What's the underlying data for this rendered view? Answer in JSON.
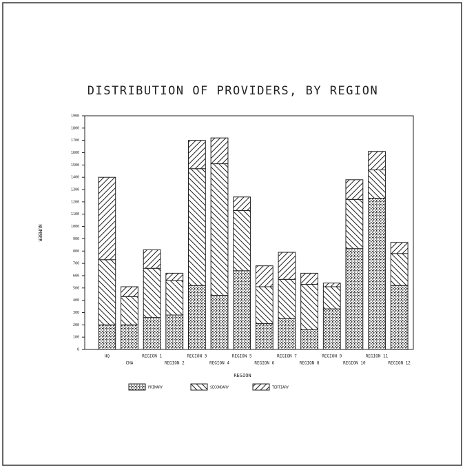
{
  "chart_data": {
    "type": "stacked_bar",
    "title": "DISTRIBUTION OF PROVIDERS, BY REGION",
    "x_label": "REGION",
    "y_label": "NUMBER",
    "categories": [
      "HQ",
      "CHA",
      "REGION 1",
      "REGION 2",
      "REGION 3",
      "REGION 4",
      "REGION 5",
      "REGION 6",
      "REGION 7",
      "REGION 8",
      "REGION 9",
      "REGION 10",
      "REGION 11",
      "REGION 12"
    ],
    "series": [
      {
        "name": "PRIMARY",
        "color": "#222222",
        "values": [
          200,
          200,
          260,
          280,
          520,
          440,
          640,
          210,
          250,
          160,
          330,
          820,
          1230,
          520
        ]
      },
      {
        "name": "SECONDARY",
        "color": "#222222",
        "values": [
          530,
          230,
          400,
          280,
          950,
          1070,
          490,
          300,
          320,
          370,
          180,
          400,
          230,
          260
        ]
      },
      {
        "name": "TERTIARY",
        "color": "#222222",
        "values": [
          670,
          80,
          150,
          60,
          230,
          210,
          110,
          170,
          220,
          90,
          30,
          160,
          150,
          90
        ]
      }
    ],
    "ylim": [
      0,
      1900
    ],
    "yticks": [
      0,
      100,
      200,
      300,
      400,
      500,
      600,
      700,
      800,
      900,
      1000,
      1100,
      1200,
      1300,
      1400,
      1500,
      1600,
      1700,
      1800,
      1900
    ]
  }
}
